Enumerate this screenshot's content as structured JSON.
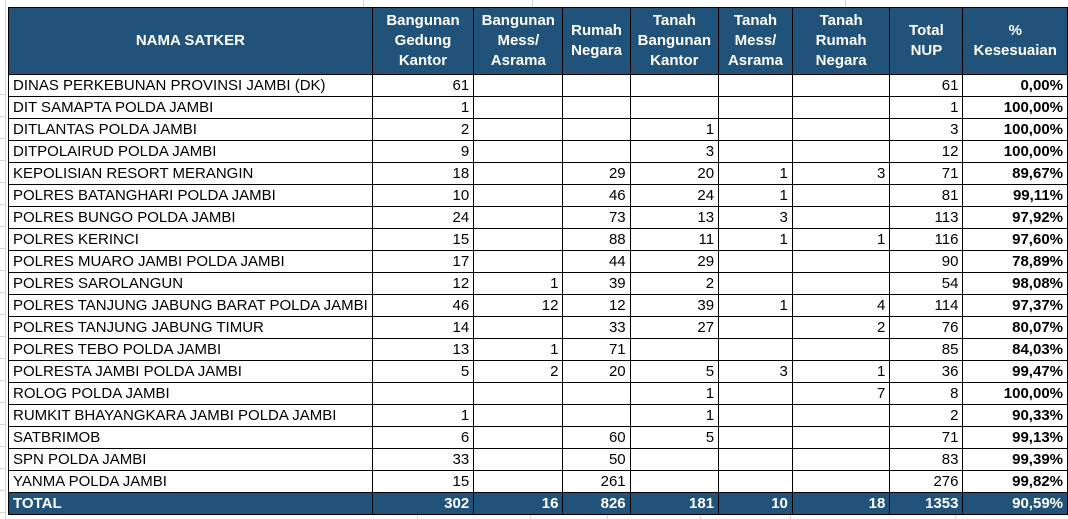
{
  "table": {
    "name_header": "NAMA SATKER",
    "columns": [
      "Bangunan\nGedung\nKantor",
      "Bangunan\nMess/\nAsrama",
      "Rumah\nNegara",
      "Tanah\nBangunan\nKantor",
      "Tanah\nMess/\nAsrama",
      "Tanah\nRumah\nNegara",
      "Total NUP",
      "% Kesesuaian"
    ],
    "rows": [
      {
        "name": "DINAS PERKEBUNAN PROVINSI JAMBI (DK)",
        "cells": [
          "61",
          "",
          "",
          "",
          "",
          ""
        ],
        "total": "61",
        "pct": "0,00%"
      },
      {
        "name": "DIT SAMAPTA POLDA JAMBI",
        "cells": [
          "1",
          "",
          "",
          "",
          "",
          ""
        ],
        "total": "1",
        "pct": "100,00%"
      },
      {
        "name": "DITLANTAS POLDA JAMBI",
        "cells": [
          "2",
          "",
          "",
          "1",
          "",
          ""
        ],
        "total": "3",
        "pct": "100,00%"
      },
      {
        "name": "DITPOLAIRUD POLDA JAMBI",
        "cells": [
          "9",
          "",
          "",
          "3",
          "",
          ""
        ],
        "total": "12",
        "pct": "100,00%"
      },
      {
        "name": "KEPOLISIAN RESORT MERANGIN",
        "cells": [
          "18",
          "",
          "29",
          "20",
          "1",
          "3"
        ],
        "total": "71",
        "pct": "89,67%"
      },
      {
        "name": "POLRES BATANGHARI POLDA JAMBI",
        "cells": [
          "10",
          "",
          "46",
          "24",
          "1",
          ""
        ],
        "total": "81",
        "pct": "99,11%"
      },
      {
        "name": "POLRES BUNGO POLDA JAMBI",
        "cells": [
          "24",
          "",
          "73",
          "13",
          "3",
          ""
        ],
        "total": "113",
        "pct": "97,92%"
      },
      {
        "name": "POLRES KERINCI",
        "cells": [
          "15",
          "",
          "88",
          "11",
          "1",
          "1"
        ],
        "total": "116",
        "pct": "97,60%"
      },
      {
        "name": "POLRES MUARO JAMBI POLDA JAMBI",
        "cells": [
          "17",
          "",
          "44",
          "29",
          "",
          ""
        ],
        "total": "90",
        "pct": "78,89%"
      },
      {
        "name": "POLRES SAROLANGUN",
        "cells": [
          "12",
          "1",
          "39",
          "2",
          "",
          ""
        ],
        "total": "54",
        "pct": "98,08%"
      },
      {
        "name": "POLRES TANJUNG JABUNG BARAT POLDA JAMBI",
        "cells": [
          "46",
          "12",
          "12",
          "39",
          "1",
          "4"
        ],
        "total": "114",
        "pct": "97,37%"
      },
      {
        "name": "POLRES TANJUNG JABUNG TIMUR",
        "cells": [
          "14",
          "",
          "33",
          "27",
          "",
          "2"
        ],
        "total": "76",
        "pct": "80,07%"
      },
      {
        "name": "POLRES TEBO POLDA JAMBI",
        "cells": [
          "13",
          "1",
          "71",
          "",
          "",
          ""
        ],
        "total": "85",
        "pct": "84,03%"
      },
      {
        "name": "POLRESTA JAMBI POLDA JAMBI",
        "cells": [
          "5",
          "2",
          "20",
          "5",
          "3",
          "1"
        ],
        "total": "36",
        "pct": "99,47%"
      },
      {
        "name": "ROLOG POLDA JAMBI",
        "cells": [
          "",
          "",
          "",
          "1",
          "",
          "7"
        ],
        "total": "8",
        "pct": "100,00%"
      },
      {
        "name": "RUMKIT BHAYANGKARA JAMBI POLDA JAMBI",
        "cells": [
          "1",
          "",
          "",
          "1",
          "",
          ""
        ],
        "total": "2",
        "pct": "90,33%"
      },
      {
        "name": "SATBRIMOB",
        "cells": [
          "6",
          "",
          "60",
          "5",
          "",
          ""
        ],
        "total": "71",
        "pct": "99,13%"
      },
      {
        "name": "SPN POLDA JAMBI",
        "cells": [
          "33",
          "",
          "50",
          "",
          "",
          ""
        ],
        "total": "83",
        "pct": "99,39%"
      },
      {
        "name": "YANMA POLDA JAMBI",
        "cells": [
          "15",
          "",
          "261",
          "",
          "",
          ""
        ],
        "total": "276",
        "pct": "99,82%"
      }
    ],
    "total_row": {
      "label": "TOTAL",
      "cells": [
        "302",
        "16",
        "826",
        "181",
        "10",
        "18"
      ],
      "total": "1353",
      "pct": "90,59%"
    }
  },
  "colors": {
    "header_bg": "#20527A",
    "header_text": "#FFFFFF",
    "cell_border": "#000000",
    "cell_text": "#000000",
    "gridline": "#D4D4D4"
  }
}
